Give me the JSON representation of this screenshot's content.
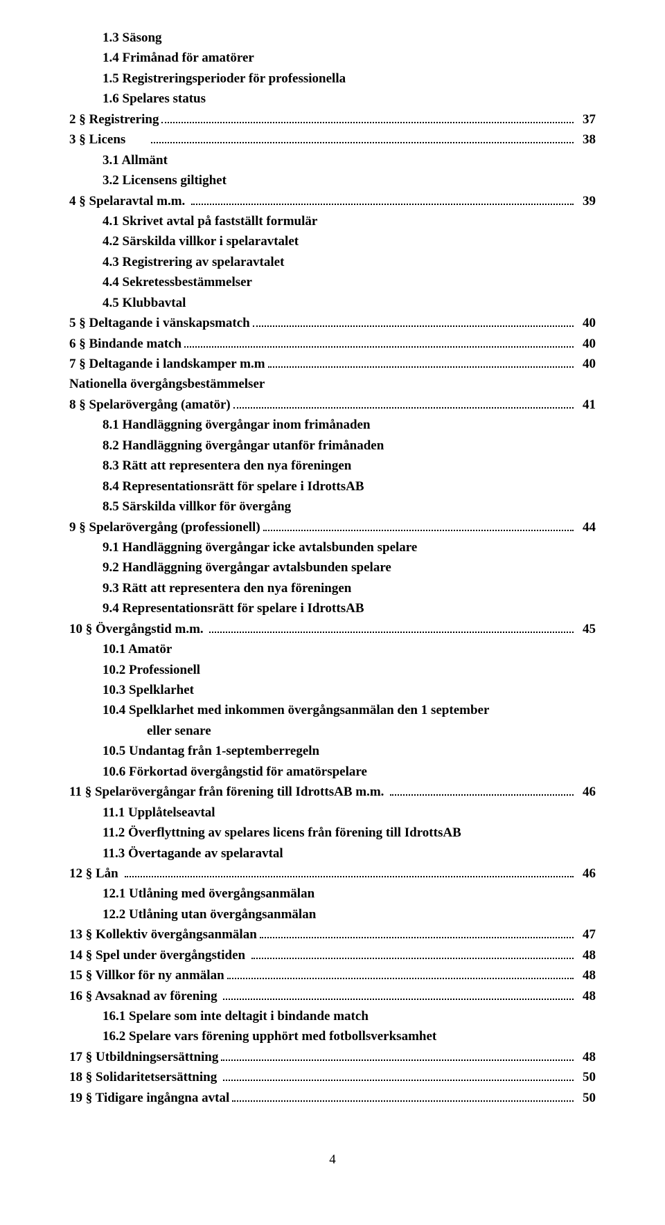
{
  "page_number": "4",
  "lines": [
    {
      "indent": 1,
      "text": "1.3 Säsong",
      "page": ""
    },
    {
      "indent": 1,
      "text": "1.4 Frimånad för amatörer",
      "page": ""
    },
    {
      "indent": 1,
      "text": "1.5 Registreringsperioder för professionella",
      "page": ""
    },
    {
      "indent": 1,
      "text": "1.6 Spelares status",
      "page": ""
    },
    {
      "indent": 0,
      "text": "2 § Registrering",
      "page": "37",
      "dots": true
    },
    {
      "indent": 0,
      "text": "3 § Licens\t",
      "page": "38",
      "dots": true
    },
    {
      "indent": 1,
      "text": "3.1 Allmänt",
      "page": ""
    },
    {
      "indent": 1,
      "text": "3.2 Licensens giltighet",
      "page": ""
    },
    {
      "indent": 0,
      "text": "4 § Spelaravtal m.m. ",
      "page": "39",
      "dots": true
    },
    {
      "indent": 1,
      "text": "4.1 Skrivet avtal på fastställt formulär",
      "page": ""
    },
    {
      "indent": 1,
      "text": "4.2 Särskilda villkor i spelaravtalet",
      "page": ""
    },
    {
      "indent": 1,
      "text": "4.3 Registrering av spelaravtalet",
      "page": ""
    },
    {
      "indent": 1,
      "text": "4.4 Sekretessbestämmelser",
      "page": ""
    },
    {
      "indent": 1,
      "text": "4.5 Klubbavtal",
      "page": ""
    },
    {
      "indent": 0,
      "text": "5 § Deltagande i vänskapsmatch",
      "page": "40",
      "dots": true
    },
    {
      "indent": 0,
      "text": "6 § Bindande match",
      "page": "40",
      "dots": true
    },
    {
      "indent": 0,
      "text": "7 § Deltagande i landskamper m.m",
      "page": "40",
      "dots": true
    },
    {
      "indent": 0,
      "text": "Nationella övergångsbestämmelser",
      "page": ""
    },
    {
      "indent": 0,
      "text": "8 § Spelarövergång (amatör)",
      "page": "41",
      "dots": true
    },
    {
      "indent": 1,
      "text": "8.1 Handläggning övergångar inom frimånaden",
      "page": ""
    },
    {
      "indent": 1,
      "text": "8.2 Handläggning övergångar utanför frimånaden",
      "page": ""
    },
    {
      "indent": 1,
      "text": "8.3 Rätt att representera den nya föreningen",
      "page": ""
    },
    {
      "indent": 1,
      "text": "8.4 Representationsrätt för spelare i IdrottsAB",
      "page": ""
    },
    {
      "indent": 1,
      "text": "8.5 Särskilda villkor för övergång",
      "page": ""
    },
    {
      "indent": 0,
      "text": "9 § Spelarövergång (professionell)",
      "page": "44",
      "dots": true
    },
    {
      "indent": 1,
      "text": "9.1 Handläggning övergångar icke avtalsbunden spelare",
      "page": ""
    },
    {
      "indent": 1,
      "text": "9.2 Handläggning övergångar avtalsbunden spelare",
      "page": ""
    },
    {
      "indent": 1,
      "text": "9.3 Rätt att representera den nya föreningen",
      "page": ""
    },
    {
      "indent": 1,
      "text": "9.4 Representationsrätt för spelare i IdrottsAB",
      "page": ""
    },
    {
      "indent": 0,
      "text": "10 § Övergångstid m.m. ",
      "page": "45",
      "dots": true
    },
    {
      "indent": 1,
      "text": "10.1 Amatör",
      "page": ""
    },
    {
      "indent": 1,
      "text": "10.2 Professionell",
      "page": ""
    },
    {
      "indent": 1,
      "text": "10.3 Spelklarhet",
      "page": ""
    },
    {
      "indent": 1,
      "text": "10.4 Spelklarhet med inkommen övergångsanmälan den 1 september",
      "page": ""
    },
    {
      "indent": 2,
      "text": "eller senare",
      "page": ""
    },
    {
      "indent": 1,
      "text": "10.5 Undantag från 1-septemberregeln",
      "page": ""
    },
    {
      "indent": 1,
      "text": "10.6 Förkortad övergångstid för amatörspelare",
      "page": ""
    },
    {
      "indent": 0,
      "text": "11 § Spelarövergångar från förening till IdrottsAB m.m. ",
      "page": "46",
      "dots": true
    },
    {
      "indent": 1,
      "text": "11.1 Upplåtelseavtal",
      "page": ""
    },
    {
      "indent": 1,
      "text": "11.2 Överflyttning av spelares licens från förening till IdrottsAB",
      "page": ""
    },
    {
      "indent": 1,
      "text": "11.3 Övertagande av spelaravtal",
      "page": ""
    },
    {
      "indent": 0,
      "text": "12 § Lån\t",
      "page": "46",
      "dots": true
    },
    {
      "indent": 1,
      "text": "12.1 Utlåning med övergångsanmälan",
      "page": ""
    },
    {
      "indent": 1,
      "text": "12.2 Utlåning utan övergångsanmälan",
      "page": ""
    },
    {
      "indent": 0,
      "text": "13 § Kollektiv övergångsanmälan",
      "page": "47",
      "dots": true
    },
    {
      "indent": 0,
      "text": "14 § Spel under övergångstiden ",
      "page": "48",
      "dots": true
    },
    {
      "indent": 0,
      "text": "15 § Villkor för ny anmälan",
      "page": "48",
      "dots": true
    },
    {
      "indent": 0,
      "text": "16 § Avsaknad av förening ",
      "page": "48",
      "dots": true
    },
    {
      "indent": 1,
      "text": "16.1 Spelare som inte deltagit i bindande match",
      "page": ""
    },
    {
      "indent": 1,
      "text": "16.2 Spelare vars förening upphört med fotbollsverksamhet",
      "page": ""
    },
    {
      "indent": 0,
      "text": "17 § Utbildningsersättning",
      "page": "48",
      "dots": true
    },
    {
      "indent": 0,
      "text": "18 § Solidaritetsersättning ",
      "page": "50",
      "dots": true
    },
    {
      "indent": 0,
      "text": "19 § Tidigare ingångna avtal",
      "page": "50",
      "dots": true
    }
  ]
}
